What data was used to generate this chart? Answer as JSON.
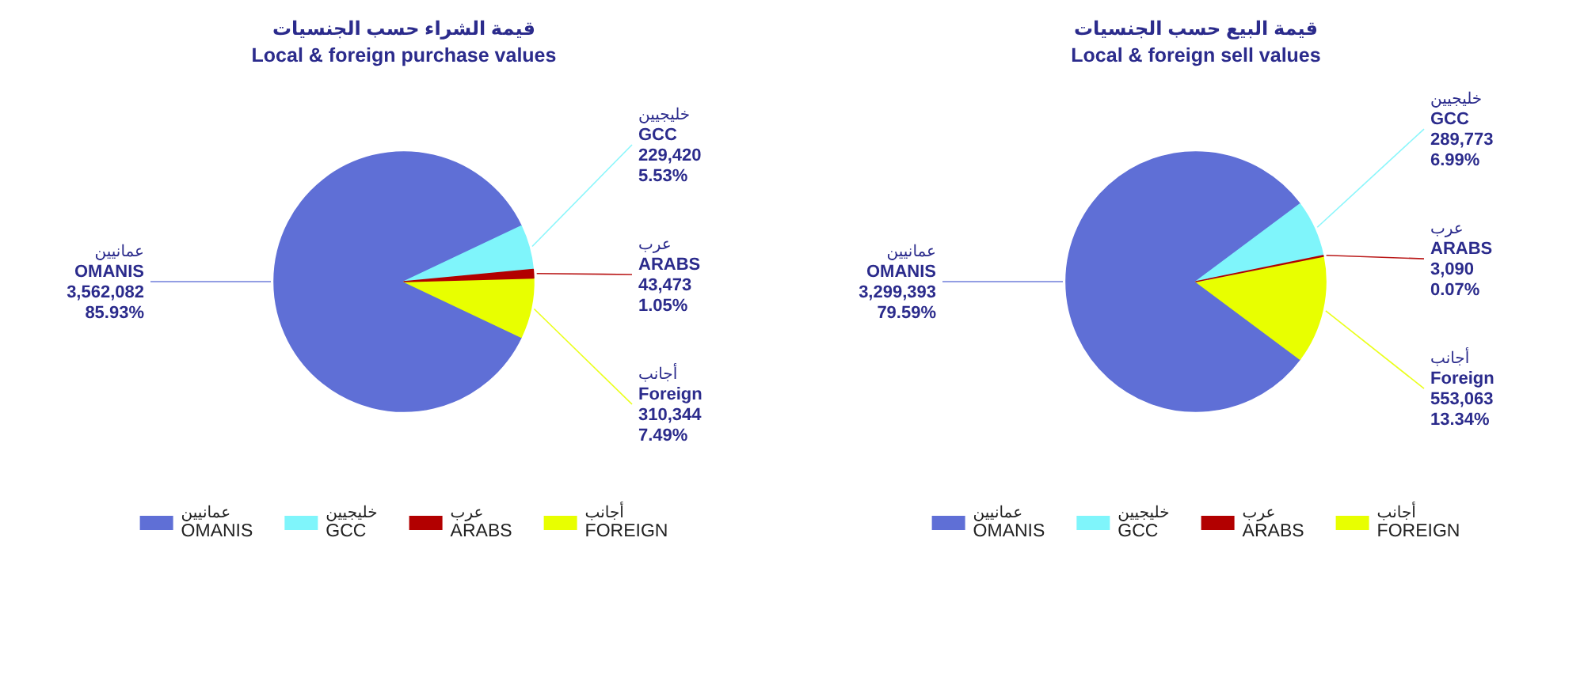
{
  "chart_data": [
    {
      "type": "pie",
      "title": "قيمة الشراء حسب الجنسيات",
      "subtitle": "Local & foreign purchase values",
      "categories": [
        "عمانيين\nOMANIS",
        "خليجيين\nGCC",
        "عرب\nARABS",
        "أجانب\nFOREIGN"
      ],
      "values": [
        3562082,
        229420,
        43473,
        310344
      ],
      "colors": [
        "#5f6fd6",
        "#7ff5fb",
        "#b20000",
        "#e8ff00"
      ],
      "value_labels": [
        "عمانيين\nOMANIS\n3,562,082\n85.93%",
        "خليجيين\nGCC\n229,420\n5.53%",
        "عرب\nARABS\n43,473\n1.05%",
        "أجانب\nForeign\n310,344\n7.49%"
      ],
      "legend": "bottom"
    },
    {
      "type": "pie",
      "title": "قيمة البيع حسب الجنسيات",
      "subtitle": "Local & foreign sell values",
      "categories": [
        "عمانيين\nOMANIS",
        "خليجيين\nGCC",
        "عرب\nARABS",
        "أجانب\nFOREIGN"
      ],
      "values": [
        3299393,
        289773,
        3090,
        553063
      ],
      "colors": [
        "#5f6fd6",
        "#7ff5fb",
        "#b20000",
        "#e8ff00"
      ],
      "value_labels": [
        "عمانيين\nOMANIS\n3,299,393\n79.59%",
        "خليجيين\nGCC\n289,773\n6.99%",
        "عرب\nARABS\n3,090\n0.07%",
        "أجانب\nForeign\n553,063\n13.34%"
      ],
      "legend": "bottom"
    }
  ]
}
